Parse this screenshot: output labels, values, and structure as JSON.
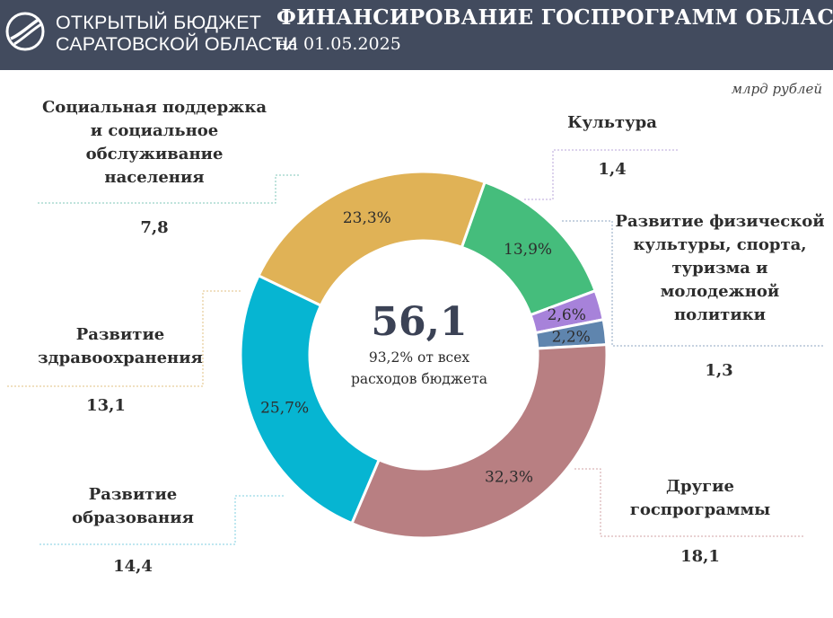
{
  "header": {
    "brand_line1": "ОТКРЫТЫЙ БЮДЖЕТ",
    "brand_line2": "САРАТОВСКОЙ ОБЛАСТИ",
    "title": "ФИНАНСИРОВАНИЕ ГОСПРОГРАММ ОБЛАСТИ",
    "date": "на 01.05.2025"
  },
  "unit_note": "млрд рублей",
  "center": {
    "total": "56,1",
    "note": "93,2% от всех\nрасходов бюджета"
  },
  "labels": {
    "social": "Социальная поддержка\nи социальное\nобслуживание\nнаселения",
    "health": "Развитие\nздравоохранения",
    "education": "Развитие\nобразования",
    "culture": "Культура",
    "sport": "Развитие физической\nкультуры, спорта,\nтуризма и\nмолодежной\nполитики",
    "other": "Другие\nгоспрограммы"
  },
  "amounts": {
    "social": "7,8",
    "health": "13,1",
    "education": "14,4",
    "culture": "1,4",
    "sport": "1,3",
    "other": "18,1"
  },
  "chart_data": {
    "type": "pie",
    "donut": true,
    "unit": "млрд рублей",
    "total": 56.1,
    "slices": [
      {
        "key": "social",
        "label": "13,9%",
        "value": 13.9,
        "amount": 7.8,
        "color": "#45bd7c"
      },
      {
        "key": "culture",
        "label": "2,6%",
        "value": 2.6,
        "amount": 1.4,
        "color": "#a782da"
      },
      {
        "key": "sport",
        "label": "2,2%",
        "value": 2.2,
        "amount": 1.3,
        "color": "#5f85ae"
      },
      {
        "key": "other",
        "label": "32,3%",
        "value": 32.3,
        "amount": 18.1,
        "color": "#b87f82"
      },
      {
        "key": "education",
        "label": "25,7%",
        "value": 25.7,
        "amount": 14.4,
        "color": "#06b5d2"
      },
      {
        "key": "health",
        "label": "23,3%",
        "value": 23.3,
        "amount": 13.1,
        "color": "#e0b256"
      }
    ]
  }
}
